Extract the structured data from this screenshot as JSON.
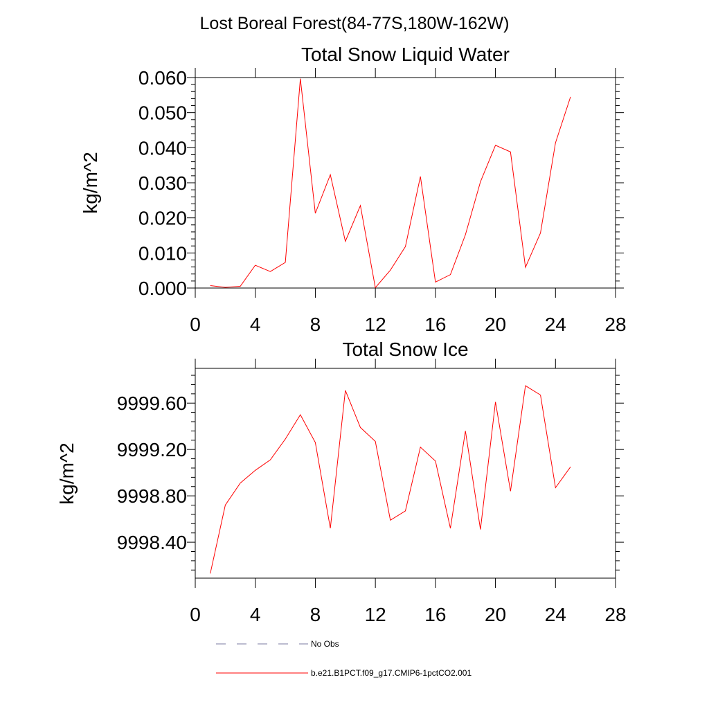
{
  "suptitle": "Lost Boreal Forest(84-77S,180W-162W)",
  "colors": {
    "model": "#ff0000",
    "obs": "#7a7aa0",
    "axis": "#000000"
  },
  "legend": {
    "placement": "bottom",
    "entries": [
      {
        "label": "No Obs",
        "style": "dashed"
      },
      {
        "label": "b.e21.B1PCT.f09_g17.CMIP6-1pctCO2.001",
        "style": "solid"
      }
    ]
  },
  "chart_data": [
    {
      "type": "line",
      "title": "Total Snow Liquid Water",
      "xlabel": "",
      "ylabel": "kg/m^2",
      "xlim": [
        0,
        28
      ],
      "ylim": [
        0,
        0.06
      ],
      "xticks": [
        "0",
        "4",
        "8",
        "12",
        "16",
        "20",
        "24",
        "28"
      ],
      "yticks": [
        "0.000",
        "0.010",
        "0.020",
        "0.030",
        "0.040",
        "0.050",
        "0.060"
      ],
      "grid": false,
      "x": [
        1,
        2,
        3,
        4,
        5,
        6,
        7,
        8,
        9,
        10,
        11,
        12,
        13,
        14,
        15,
        16,
        17,
        18,
        19,
        20,
        21,
        22,
        23,
        24,
        25
      ],
      "series": [
        {
          "name": "b.e21.B1PCT.f09_g17.CMIP6-1pctCO2.001",
          "values": [
            0.0007,
            0.0002,
            0.0005,
            0.0065,
            0.0047,
            0.0073,
            0.0597,
            0.0213,
            0.0323,
            0.0133,
            0.0235,
            0.0001,
            0.0051,
            0.0118,
            0.0318,
            0.0017,
            0.0038,
            0.0152,
            0.0303,
            0.0407,
            0.0388,
            0.0059,
            0.0157,
            0.0414,
            0.0545
          ]
        }
      ]
    },
    {
      "type": "line",
      "title": "Total Snow Ice",
      "xlabel": "",
      "ylabel": "kg/m^2",
      "xlim": [
        0,
        28
      ],
      "ylim": [
        9998.09,
        9999.9
      ],
      "xticks": [
        "0",
        "4",
        "8",
        "12",
        "16",
        "20",
        "24",
        "28"
      ],
      "yticks": [
        "9998.40",
        "9998.80",
        "9999.20",
        "9999.60"
      ],
      "ytick_values": [
        9998.4,
        9998.8,
        9999.2,
        9999.6
      ],
      "grid": false,
      "x": [
        1,
        2,
        3,
        4,
        5,
        6,
        7,
        8,
        9,
        10,
        11,
        12,
        13,
        14,
        15,
        16,
        17,
        18,
        19,
        20,
        21,
        22,
        23,
        24,
        25
      ],
      "series": [
        {
          "name": "b.e21.B1PCT.f09_g17.CMIP6-1pctCO2.001",
          "values": [
            9998.13,
            9998.72,
            9998.91,
            9999.02,
            9999.11,
            9999.29,
            9999.5,
            9999.26,
            9998.52,
            9999.71,
            9999.39,
            9999.27,
            9998.59,
            9998.67,
            9999.22,
            9999.1,
            9998.52,
            9999.36,
            9998.51,
            9999.61,
            9998.84,
            9999.75,
            9999.67,
            9998.87,
            9999.05
          ]
        }
      ]
    }
  ]
}
